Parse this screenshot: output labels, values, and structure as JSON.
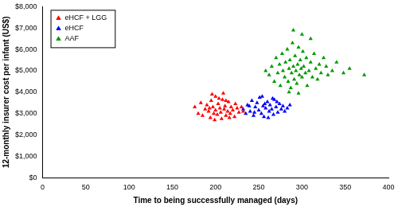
{
  "chart_data": {
    "type": "scatter",
    "xlabel": "Time to being successfully managed (days)",
    "ylabel": "12-monthly insurer cost per infant (US$)",
    "xlim": [
      0,
      400
    ],
    "xticks": [
      0,
      50,
      100,
      150,
      200,
      250,
      300,
      350,
      400
    ],
    "ylim": [
      0,
      8000
    ],
    "yticks": [
      {
        "value": 0,
        "label": "$0"
      },
      {
        "value": 1000,
        "label": "$1,000"
      },
      {
        "value": 2000,
        "label": "$2,000"
      },
      {
        "value": 3000,
        "label": "$3,000"
      },
      {
        "value": 4000,
        "label": "$4,000"
      },
      {
        "value": 5000,
        "label": "$5,000"
      },
      {
        "value": 6000,
        "label": "$6,000"
      },
      {
        "value": 7000,
        "label": "$7,000"
      },
      {
        "value": 8000,
        "label": "$8,000"
      }
    ],
    "grid": false,
    "legend": "upper left",
    "series": [
      {
        "name": "eHCF + LGG",
        "color": "#ff0000",
        "marker": "triangle",
        "x": [
          180,
          185,
          188,
          190,
          192,
          194,
          195,
          197,
          198,
          200,
          200,
          202,
          203,
          205,
          206,
          207,
          208,
          210,
          211,
          212,
          214,
          215,
          217,
          218,
          220,
          222,
          223,
          225,
          227,
          230,
          232,
          176,
          183,
          196,
          209,
          199,
          216,
          204,
          193,
          212
        ],
        "values": [
          3000,
          2900,
          3200,
          3400,
          3100,
          2800,
          3600,
          3300,
          3000,
          3150,
          3800,
          2950,
          3450,
          3250,
          3050,
          2750,
          3650,
          3200,
          3350,
          2900,
          3100,
          3550,
          3000,
          3300,
          3150,
          2850,
          3450,
          3250,
          3050,
          3300,
          3100,
          3300,
          3500,
          3900,
          3950,
          2700,
          2800,
          3700,
          3250,
          3600
        ]
      },
      {
        "name": "eHCF",
        "color": "#0000ff",
        "marker": "triangle",
        "x": [
          232,
          235,
          237,
          240,
          242,
          244,
          246,
          248,
          250,
          251,
          253,
          255,
          256,
          258,
          260,
          262,
          263,
          265,
          267,
          268,
          270,
          272,
          274,
          276,
          278,
          280,
          283,
          286,
          245,
          254,
          261,
          266,
          239,
          257,
          271
        ],
        "values": [
          3200,
          3000,
          3400,
          3100,
          3600,
          2900,
          3300,
          3500,
          3150,
          3750,
          3000,
          3350,
          2850,
          3250,
          3550,
          3100,
          3400,
          3200,
          2950,
          3650,
          3300,
          3050,
          3450,
          3200,
          3350,
          3100,
          3250,
          3400,
          3050,
          3800,
          2800,
          3700,
          3350,
          3450,
          3550
        ]
      },
      {
        "name": "AAF",
        "color": "#009900",
        "marker": "triangle",
        "x": [
          262,
          265,
          268,
          270,
          272,
          274,
          275,
          277,
          278,
          280,
          281,
          283,
          284,
          285,
          286,
          287,
          288,
          289,
          290,
          291,
          292,
          293,
          294,
          295,
          296,
          297,
          298,
          299,
          300,
          301,
          302,
          304,
          305,
          306,
          308,
          310,
          312,
          314,
          316,
          318,
          320,
          322,
          325,
          328,
          330,
          335,
          340,
          348,
          355,
          372,
          258,
          290,
          300,
          310,
          285,
          296
        ],
        "values": [
          4800,
          5200,
          4500,
          5600,
          4900,
          5300,
          4300,
          5800,
          5000,
          4700,
          5400,
          6000,
          4500,
          5100,
          5500,
          4200,
          4900,
          6300,
          5200,
          4600,
          5700,
          5000,
          4400,
          5300,
          6100,
          4800,
          5500,
          5100,
          4700,
          5900,
          5200,
          4900,
          5600,
          4300,
          5000,
          5400,
          4700,
          5800,
          5100,
          4600,
          5300,
          4900,
          5600,
          5200,
          4800,
          5000,
          5400,
          4900,
          5100,
          4800,
          5000,
          6900,
          6700,
          6500,
          4000,
          3950
        ]
      }
    ]
  }
}
